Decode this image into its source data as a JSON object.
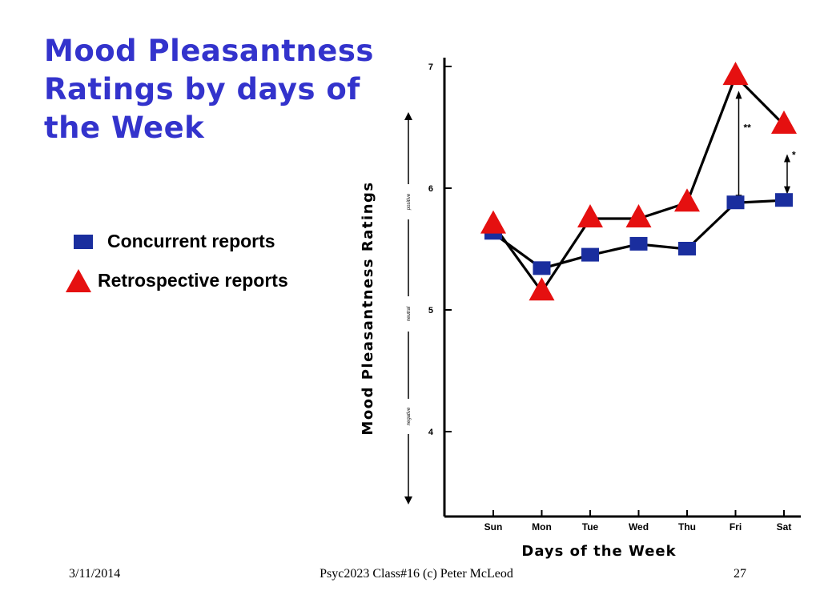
{
  "slide": {
    "title_lines": [
      "Mood Pleasantness",
      "Ratings by days of",
      "the Week"
    ],
    "footer_date": "3/11/2014",
    "footer_center": "Psyc2023 Class#16 (c) Peter McLeod",
    "footer_page": "27"
  },
  "legend": {
    "concurrent_label": "Concurrent reports",
    "retrospective_label": "Retrospective reports"
  },
  "colors": {
    "title": "#3333cc",
    "concurrent": "#1a2e9e",
    "retrospective": "#e51010",
    "line": "#000000"
  },
  "chart_data": {
    "type": "line",
    "title": "",
    "xlabel": "Days of the Week",
    "ylabel": "Mood Pleasantness Ratings",
    "ylabel_side": [
      "negative",
      "neutral",
      "positive"
    ],
    "categories": [
      "Sun",
      "Mon",
      "Tue",
      "Wed",
      "Thu",
      "Fri",
      "Sat"
    ],
    "y_ticks": [
      4,
      5,
      6,
      7
    ],
    "ylim": [
      3.35,
      7.05
    ],
    "series": [
      {
        "name": "Concurrent reports",
        "marker": "square",
        "values": [
          5.63,
          5.34,
          5.45,
          5.54,
          5.5,
          5.88,
          5.9
        ]
      },
      {
        "name": "Retrospective reports",
        "marker": "triangle",
        "values": [
          5.7,
          5.15,
          5.75,
          5.75,
          5.88,
          6.92,
          6.52
        ]
      }
    ],
    "annotations": [
      {
        "category": "Fri",
        "text": "**",
        "from": 5.88,
        "to": 6.8
      },
      {
        "category": "Sat",
        "text": "*",
        "from": 5.95,
        "to": 6.28
      }
    ],
    "grid": false,
    "legend": "left"
  }
}
